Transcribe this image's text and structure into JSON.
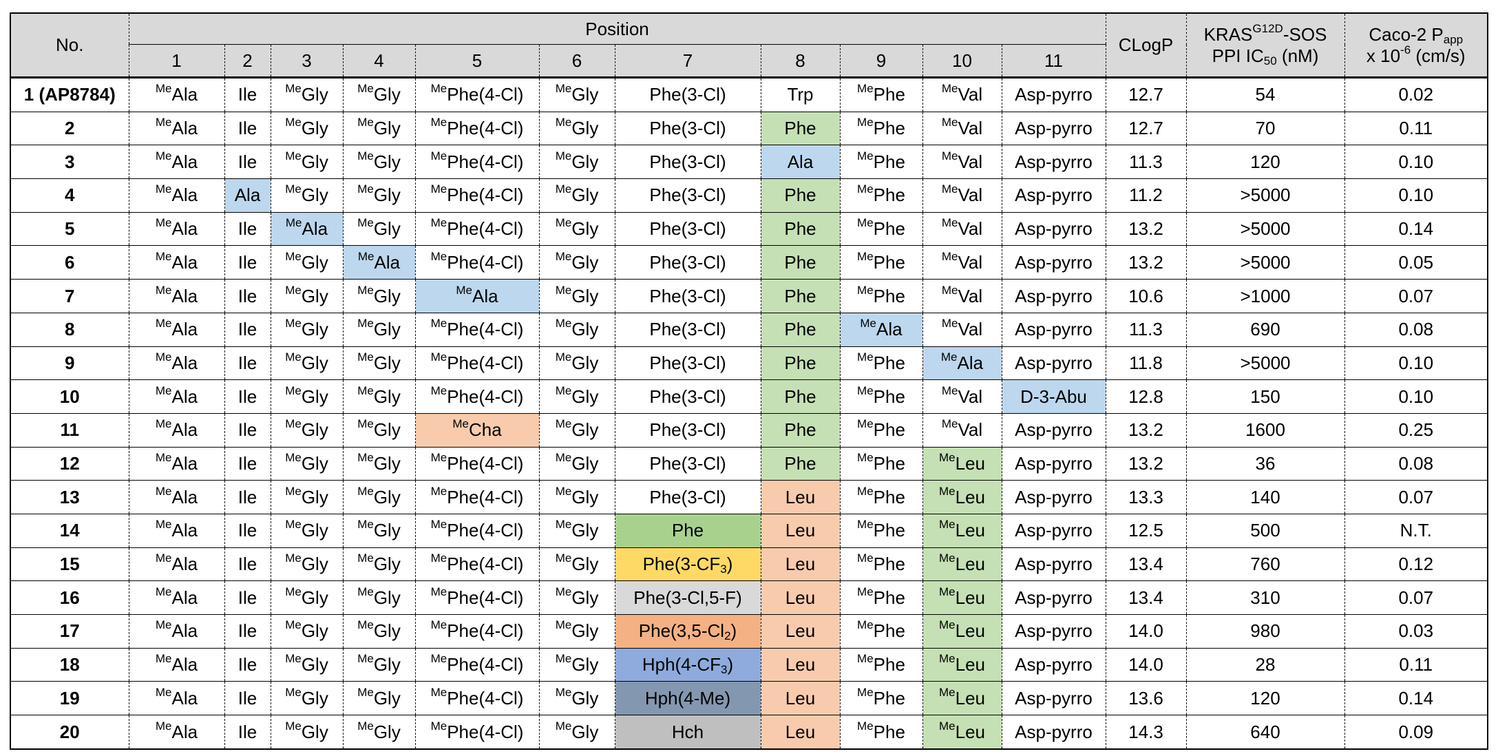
{
  "header": {
    "no": "No.",
    "position": "Position",
    "positions": [
      "1",
      "2",
      "3",
      "4",
      "5",
      "6",
      "7",
      "8",
      "9",
      "10",
      "11"
    ],
    "clogp": "CLogP",
    "kras": {
      "pre": "KRAS",
      "sup": "G12D",
      "mid": "-SOS",
      "line2_pre": "PPI IC",
      "sub": "50",
      "line2_post": " (nM)"
    },
    "caco": {
      "pre": "Caco-2 P",
      "sub": "app",
      "line2_pre": "x 10",
      "sup": "-6",
      "line2_post": " (cm/s)"
    }
  },
  "rows": [
    {
      "no": "1 (AP8784)",
      "cells": [
        {
          "me": true,
          "t": "Ala"
        },
        {
          "t": "Ile"
        },
        {
          "me": true,
          "t": "Gly"
        },
        {
          "me": true,
          "t": "Gly"
        },
        {
          "me": true,
          "t": "Phe(4-Cl)"
        },
        {
          "me": true,
          "t": "Gly"
        },
        {
          "t": "Phe(3-Cl)"
        },
        {
          "t": "Trp"
        },
        {
          "me": true,
          "t": "Phe"
        },
        {
          "me": true,
          "t": "Val"
        },
        {
          "t": "Asp-pyrro"
        }
      ],
      "clogp": "12.7",
      "ic50": "54",
      "papp": "0.02"
    },
    {
      "no": "2",
      "cells": [
        {
          "me": true,
          "t": "Ala"
        },
        {
          "t": "Ile"
        },
        {
          "me": true,
          "t": "Gly"
        },
        {
          "me": true,
          "t": "Gly"
        },
        {
          "me": true,
          "t": "Phe(4-Cl)"
        },
        {
          "me": true,
          "t": "Gly"
        },
        {
          "t": "Phe(3-Cl)"
        },
        {
          "t": "Phe",
          "bg": "#c5e0b4"
        },
        {
          "me": true,
          "t": "Phe"
        },
        {
          "me": true,
          "t": "Val"
        },
        {
          "t": "Asp-pyrro"
        }
      ],
      "clogp": "12.7",
      "ic50": "70",
      "papp": "0.11"
    },
    {
      "no": "3",
      "cells": [
        {
          "me": true,
          "t": "Ala"
        },
        {
          "t": "Ile"
        },
        {
          "me": true,
          "t": "Gly"
        },
        {
          "me": true,
          "t": "Gly"
        },
        {
          "me": true,
          "t": "Phe(4-Cl)"
        },
        {
          "me": true,
          "t": "Gly"
        },
        {
          "t": "Phe(3-Cl)"
        },
        {
          "t": "Ala",
          "bg": "#bdd7ee"
        },
        {
          "me": true,
          "t": "Phe"
        },
        {
          "me": true,
          "t": "Val"
        },
        {
          "t": "Asp-pyrro"
        }
      ],
      "clogp": "11.3",
      "ic50": "120",
      "papp": "0.10"
    },
    {
      "no": "4",
      "cells": [
        {
          "me": true,
          "t": "Ala"
        },
        {
          "t": "Ala",
          "bg": "#bdd7ee"
        },
        {
          "me": true,
          "t": "Gly"
        },
        {
          "me": true,
          "t": "Gly"
        },
        {
          "me": true,
          "t": "Phe(4-Cl)"
        },
        {
          "me": true,
          "t": "Gly"
        },
        {
          "t": "Phe(3-Cl)"
        },
        {
          "t": "Phe",
          "bg": "#c5e0b4"
        },
        {
          "me": true,
          "t": "Phe"
        },
        {
          "me": true,
          "t": "Val"
        },
        {
          "t": "Asp-pyrro"
        }
      ],
      "clogp": "11.2",
      "ic50": ">5000",
      "papp": "0.10"
    },
    {
      "no": "5",
      "cells": [
        {
          "me": true,
          "t": "Ala"
        },
        {
          "t": "Ile"
        },
        {
          "me": true,
          "t": "Ala",
          "bg": "#bdd7ee"
        },
        {
          "me": true,
          "t": "Gly"
        },
        {
          "me": true,
          "t": "Phe(4-Cl)"
        },
        {
          "me": true,
          "t": "Gly"
        },
        {
          "t": "Phe(3-Cl)"
        },
        {
          "t": "Phe",
          "bg": "#c5e0b4"
        },
        {
          "me": true,
          "t": "Phe"
        },
        {
          "me": true,
          "t": "Val"
        },
        {
          "t": "Asp-pyrro"
        }
      ],
      "clogp": "13.2",
      "ic50": ">5000",
      "papp": "0.14"
    },
    {
      "no": "6",
      "cells": [
        {
          "me": true,
          "t": "Ala"
        },
        {
          "t": "Ile"
        },
        {
          "me": true,
          "t": "Gly"
        },
        {
          "me": true,
          "t": "Ala",
          "bg": "#bdd7ee"
        },
        {
          "me": true,
          "t": "Phe(4-Cl)"
        },
        {
          "me": true,
          "t": "Gly"
        },
        {
          "t": "Phe(3-Cl)"
        },
        {
          "t": "Phe",
          "bg": "#c5e0b4"
        },
        {
          "me": true,
          "t": "Phe"
        },
        {
          "me": true,
          "t": "Val"
        },
        {
          "t": "Asp-pyrro"
        }
      ],
      "clogp": "13.2",
      "ic50": ">5000",
      "papp": "0.05"
    },
    {
      "no": "7",
      "cells": [
        {
          "me": true,
          "t": "Ala"
        },
        {
          "t": "Ile"
        },
        {
          "me": true,
          "t": "Gly"
        },
        {
          "me": true,
          "t": "Gly"
        },
        {
          "me": true,
          "t": "Ala",
          "bg": "#bdd7ee"
        },
        {
          "me": true,
          "t": "Gly"
        },
        {
          "t": "Phe(3-Cl)"
        },
        {
          "t": "Phe",
          "bg": "#c5e0b4"
        },
        {
          "me": true,
          "t": "Phe"
        },
        {
          "me": true,
          "t": "Val"
        },
        {
          "t": "Asp-pyrro"
        }
      ],
      "clogp": "10.6",
      "ic50": ">1000",
      "papp": "0.07"
    },
    {
      "no": "8",
      "cells": [
        {
          "me": true,
          "t": "Ala"
        },
        {
          "t": "Ile"
        },
        {
          "me": true,
          "t": "Gly"
        },
        {
          "me": true,
          "t": "Gly"
        },
        {
          "me": true,
          "t": "Phe(4-Cl)"
        },
        {
          "me": true,
          "t": "Gly"
        },
        {
          "t": "Phe(3-Cl)"
        },
        {
          "t": "Phe",
          "bg": "#c5e0b4"
        },
        {
          "me": true,
          "t": "Ala",
          "bg": "#bdd7ee"
        },
        {
          "me": true,
          "t": "Val"
        },
        {
          "t": "Asp-pyrro"
        }
      ],
      "clogp": "11.3",
      "ic50": "690",
      "papp": "0.08"
    },
    {
      "no": "9",
      "cells": [
        {
          "me": true,
          "t": "Ala"
        },
        {
          "t": "Ile"
        },
        {
          "me": true,
          "t": "Gly"
        },
        {
          "me": true,
          "t": "Gly"
        },
        {
          "me": true,
          "t": "Phe(4-Cl)"
        },
        {
          "me": true,
          "t": "Gly"
        },
        {
          "t": "Phe(3-Cl)"
        },
        {
          "t": "Phe",
          "bg": "#c5e0b4"
        },
        {
          "me": true,
          "t": "Phe"
        },
        {
          "me": true,
          "t": "Ala",
          "bg": "#bdd7ee"
        },
        {
          "t": "Asp-pyrro"
        }
      ],
      "clogp": "11.8",
      "ic50": ">5000",
      "papp": "0.10"
    },
    {
      "no": "10",
      "cells": [
        {
          "me": true,
          "t": "Ala"
        },
        {
          "t": "Ile"
        },
        {
          "me": true,
          "t": "Gly"
        },
        {
          "me": true,
          "t": "Gly"
        },
        {
          "me": true,
          "t": "Phe(4-Cl)"
        },
        {
          "me": true,
          "t": "Gly"
        },
        {
          "t": "Phe(3-Cl)"
        },
        {
          "t": "Phe",
          "bg": "#c5e0b4"
        },
        {
          "me": true,
          "t": "Phe"
        },
        {
          "me": true,
          "t": "Val"
        },
        {
          "t": "D-3-Abu",
          "bg": "#bdd7ee"
        }
      ],
      "clogp": "12.8",
      "ic50": "150",
      "papp": "0.10"
    },
    {
      "no": "11",
      "cells": [
        {
          "me": true,
          "t": "Ala"
        },
        {
          "t": "Ile"
        },
        {
          "me": true,
          "t": "Gly"
        },
        {
          "me": true,
          "t": "Gly"
        },
        {
          "me": true,
          "t": "Cha",
          "bg": "#f8cbad"
        },
        {
          "me": true,
          "t": "Gly"
        },
        {
          "t": "Phe(3-Cl)"
        },
        {
          "t": "Phe",
          "bg": "#c5e0b4"
        },
        {
          "me": true,
          "t": "Phe"
        },
        {
          "me": true,
          "t": "Val"
        },
        {
          "t": "Asp-pyrro"
        }
      ],
      "clogp": "13.2",
      "ic50": "1600",
      "papp": "0.25"
    },
    {
      "no": "12",
      "cells": [
        {
          "me": true,
          "t": "Ala"
        },
        {
          "t": "Ile"
        },
        {
          "me": true,
          "t": "Gly"
        },
        {
          "me": true,
          "t": "Gly"
        },
        {
          "me": true,
          "t": "Phe(4-Cl)"
        },
        {
          "me": true,
          "t": "Gly"
        },
        {
          "t": "Phe(3-Cl)"
        },
        {
          "t": "Phe",
          "bg": "#c5e0b4"
        },
        {
          "me": true,
          "t": "Phe"
        },
        {
          "me": true,
          "t": "Leu",
          "bg": "#c5e0b4"
        },
        {
          "t": "Asp-pyrro"
        }
      ],
      "clogp": "13.2",
      "ic50": "36",
      "papp": "0.08"
    },
    {
      "no": "13",
      "cells": [
        {
          "me": true,
          "t": "Ala"
        },
        {
          "t": "Ile"
        },
        {
          "me": true,
          "t": "Gly"
        },
        {
          "me": true,
          "t": "Gly"
        },
        {
          "me": true,
          "t": "Phe(4-Cl)"
        },
        {
          "me": true,
          "t": "Gly"
        },
        {
          "t": "Phe(3-Cl)"
        },
        {
          "t": "Leu",
          "bg": "#f8cbad"
        },
        {
          "me": true,
          "t": "Phe"
        },
        {
          "me": true,
          "t": "Leu",
          "bg": "#c5e0b4"
        },
        {
          "t": "Asp-pyrro"
        }
      ],
      "clogp": "13.3",
      "ic50": "140",
      "papp": "0.07"
    },
    {
      "no": "14",
      "cells": [
        {
          "me": true,
          "t": "Ala"
        },
        {
          "t": "Ile"
        },
        {
          "me": true,
          "t": "Gly"
        },
        {
          "me": true,
          "t": "Gly"
        },
        {
          "me": true,
          "t": "Phe(4-Cl)"
        },
        {
          "me": true,
          "t": "Gly"
        },
        {
          "t": "Phe",
          "bg": "#a9d18e"
        },
        {
          "t": "Leu",
          "bg": "#f8cbad"
        },
        {
          "me": true,
          "t": "Phe"
        },
        {
          "me": true,
          "t": "Leu",
          "bg": "#c5e0b4"
        },
        {
          "t": "Asp-pyrro"
        }
      ],
      "clogp": "12.5",
      "ic50": "500",
      "papp": "N.T."
    },
    {
      "no": "15",
      "cells": [
        {
          "me": true,
          "t": "Ala"
        },
        {
          "t": "Ile"
        },
        {
          "me": true,
          "t": "Gly"
        },
        {
          "me": true,
          "t": "Gly"
        },
        {
          "me": true,
          "t": "Phe(4-Cl)"
        },
        {
          "me": true,
          "t": "Gly"
        },
        {
          "t": "Phe(3-CF",
          "sub": "3",
          "post": ")",
          "bg": "#ffd966"
        },
        {
          "t": "Leu",
          "bg": "#f8cbad"
        },
        {
          "me": true,
          "t": "Phe"
        },
        {
          "me": true,
          "t": "Leu",
          "bg": "#c5e0b4"
        },
        {
          "t": "Asp-pyrro"
        }
      ],
      "clogp": "13.4",
      "ic50": "760",
      "papp": "0.12"
    },
    {
      "no": "16",
      "cells": [
        {
          "me": true,
          "t": "Ala"
        },
        {
          "t": "Ile"
        },
        {
          "me": true,
          "t": "Gly"
        },
        {
          "me": true,
          "t": "Gly"
        },
        {
          "me": true,
          "t": "Phe(4-Cl)"
        },
        {
          "me": true,
          "t": "Gly"
        },
        {
          "t": "Phe(3-Cl,5-F)",
          "bg": "#d9d9d9"
        },
        {
          "t": "Leu",
          "bg": "#f8cbad"
        },
        {
          "me": true,
          "t": "Phe"
        },
        {
          "me": true,
          "t": "Leu",
          "bg": "#c5e0b4"
        },
        {
          "t": "Asp-pyrro"
        }
      ],
      "clogp": "13.4",
      "ic50": "310",
      "papp": "0.07"
    },
    {
      "no": "17",
      "cells": [
        {
          "me": true,
          "t": "Ala"
        },
        {
          "t": "Ile"
        },
        {
          "me": true,
          "t": "Gly"
        },
        {
          "me": true,
          "t": "Gly"
        },
        {
          "me": true,
          "t": "Phe(4-Cl)"
        },
        {
          "me": true,
          "t": "Gly"
        },
        {
          "t": "Phe(3,5-Cl",
          "sub": "2",
          "post": ")",
          "bg": "#f4b183"
        },
        {
          "t": "Leu",
          "bg": "#f8cbad"
        },
        {
          "me": true,
          "t": "Phe"
        },
        {
          "me": true,
          "t": "Leu",
          "bg": "#c5e0b4"
        },
        {
          "t": "Asp-pyrro"
        }
      ],
      "clogp": "14.0",
      "ic50": "980",
      "papp": "0.03"
    },
    {
      "no": "18",
      "cells": [
        {
          "me": true,
          "t": "Ala"
        },
        {
          "t": "Ile"
        },
        {
          "me": true,
          "t": "Gly"
        },
        {
          "me": true,
          "t": "Gly"
        },
        {
          "me": true,
          "t": "Phe(4-Cl)"
        },
        {
          "me": true,
          "t": "Gly"
        },
        {
          "t": "Hph(4-CF",
          "sub": "3",
          "post": ")",
          "bg": "#8faadc"
        },
        {
          "t": "Leu",
          "bg": "#f8cbad"
        },
        {
          "me": true,
          "t": "Phe"
        },
        {
          "me": true,
          "t": "Leu",
          "bg": "#c5e0b4"
        },
        {
          "t": "Asp-pyrro"
        }
      ],
      "clogp": "14.0",
      "ic50": "28",
      "papp": "0.11"
    },
    {
      "no": "19",
      "cells": [
        {
          "me": true,
          "t": "Ala"
        },
        {
          "t": "Ile"
        },
        {
          "me": true,
          "t": "Gly"
        },
        {
          "me": true,
          "t": "Gly"
        },
        {
          "me": true,
          "t": "Phe(4-Cl)"
        },
        {
          "me": true,
          "t": "Gly"
        },
        {
          "t": "Hph(4-Me)",
          "bg": "#8497b0"
        },
        {
          "t": "Leu",
          "bg": "#f8cbad"
        },
        {
          "me": true,
          "t": "Phe"
        },
        {
          "me": true,
          "t": "Leu",
          "bg": "#c5e0b4"
        },
        {
          "t": "Asp-pyrro"
        }
      ],
      "clogp": "13.6",
      "ic50": "120",
      "papp": "0.14"
    },
    {
      "no": "20",
      "cells": [
        {
          "me": true,
          "t": "Ala"
        },
        {
          "t": "Ile"
        },
        {
          "me": true,
          "t": "Gly"
        },
        {
          "me": true,
          "t": "Gly"
        },
        {
          "me": true,
          "t": "Phe(4-Cl)"
        },
        {
          "me": true,
          "t": "Gly"
        },
        {
          "t": "Hch",
          "bg": "#bfbfbf"
        },
        {
          "t": "Leu",
          "bg": "#f8cbad"
        },
        {
          "me": true,
          "t": "Phe"
        },
        {
          "me": true,
          "t": "Leu",
          "bg": "#c5e0b4"
        },
        {
          "t": "Asp-pyrro"
        }
      ],
      "clogp": "14.3",
      "ic50": "640",
      "papp": "0.09"
    }
  ],
  "me_prefix": "Me"
}
